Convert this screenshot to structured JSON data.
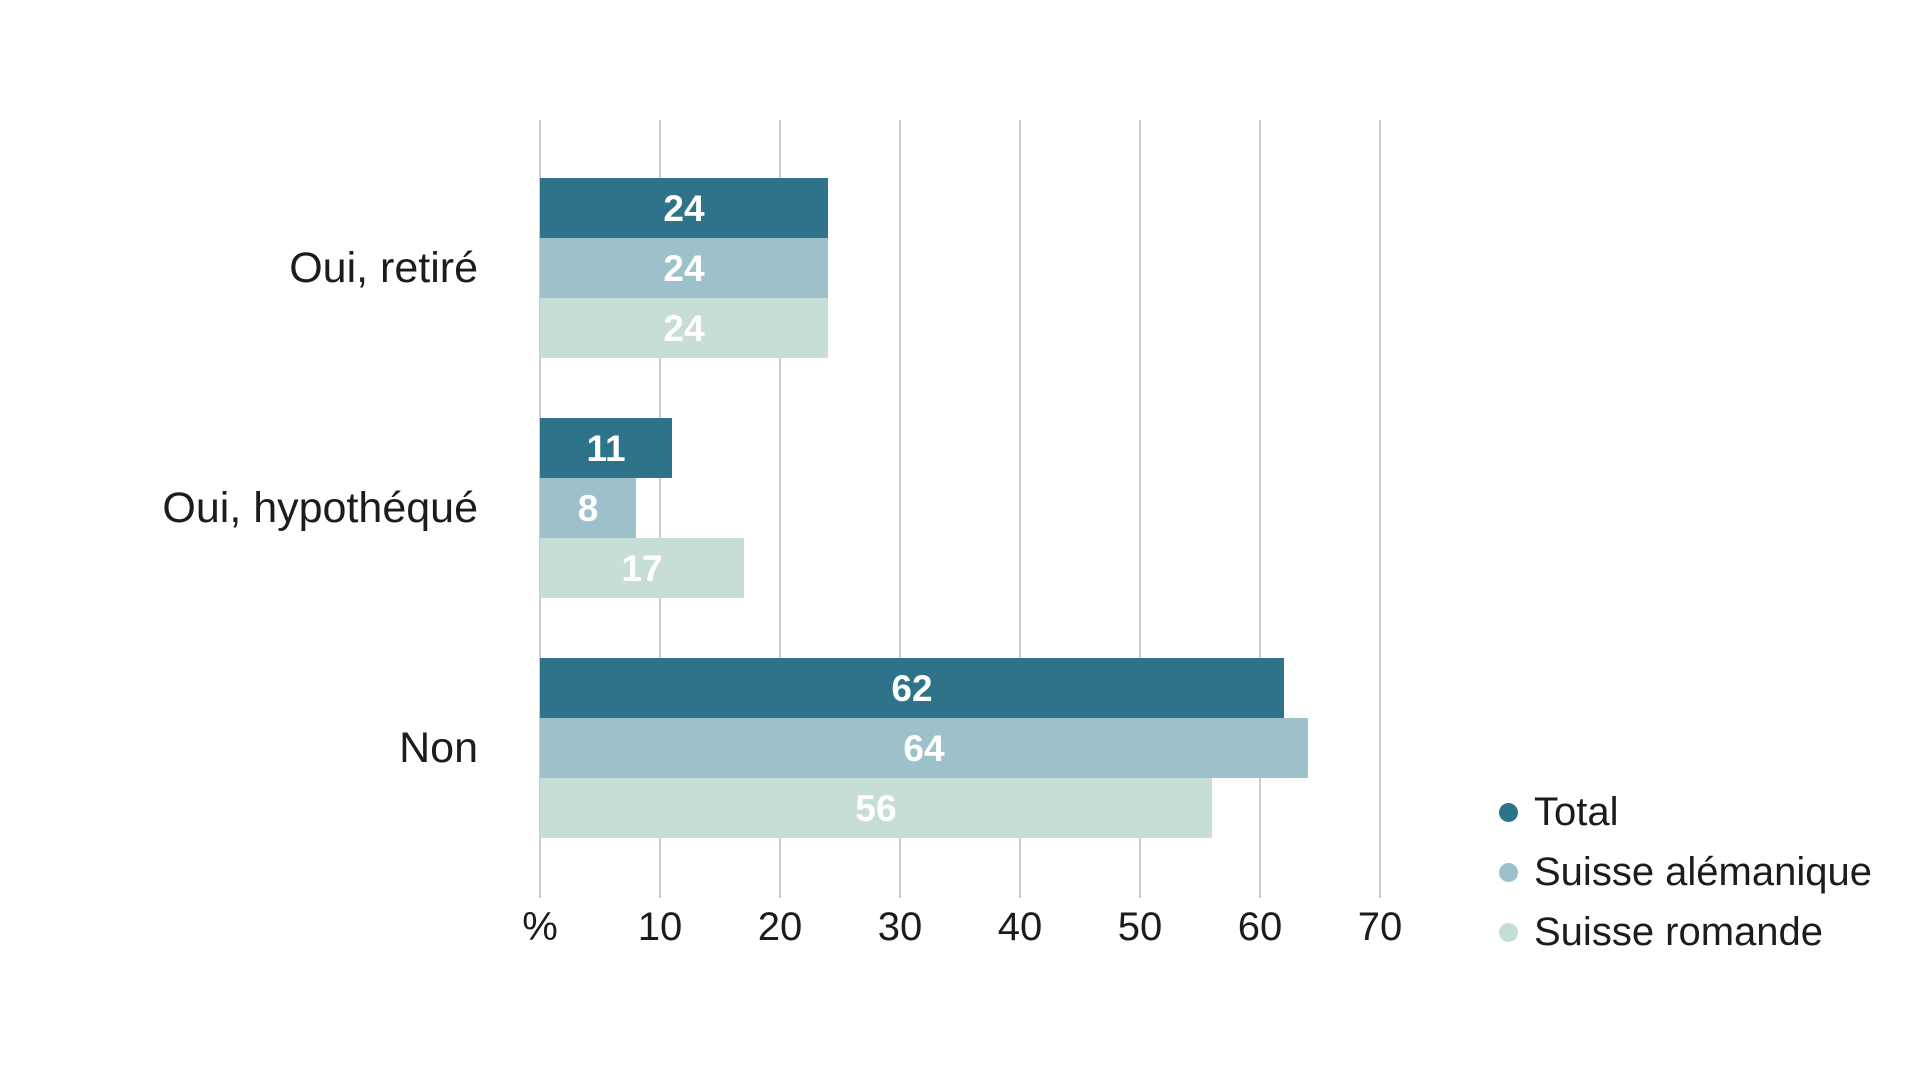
{
  "chart_data": {
    "type": "bar",
    "orientation": "horizontal",
    "title": "",
    "categories": [
      "Oui, retiré",
      "Oui, hypothéqué",
      "Non"
    ],
    "series": [
      {
        "name": "Total",
        "color": "#2e7389",
        "values": [
          24,
          11,
          62
        ]
      },
      {
        "name": "Suisse alémanique",
        "color": "#9ec0cb",
        "values": [
          24,
          8,
          64
        ]
      },
      {
        "name": "Suisse romande",
        "color": "#c7ddd7",
        "values": [
          24,
          17,
          56
        ]
      }
    ],
    "value_labels": [
      [
        "24",
        "11",
        "62"
      ],
      [
        "24",
        "8",
        "64"
      ],
      [
        "24",
        "17",
        "56"
      ]
    ],
    "x_axis": {
      "tick_labels": [
        "%",
        "10",
        "20",
        "30",
        "40",
        "50",
        "60",
        "70"
      ],
      "tick_values": [
        0,
        10,
        20,
        30,
        40,
        50,
        60,
        70
      ],
      "range": [
        0,
        75
      ],
      "grid": true
    },
    "legend": {
      "position": "bottom-right",
      "items": [
        "Total",
        "Suisse alémanique",
        "Suisse romande"
      ]
    },
    "colors": {
      "gridline": "#cdcdcd",
      "text": "#1c1c1c",
      "value_label": "#ffffff",
      "background": "#ffffff"
    }
  }
}
